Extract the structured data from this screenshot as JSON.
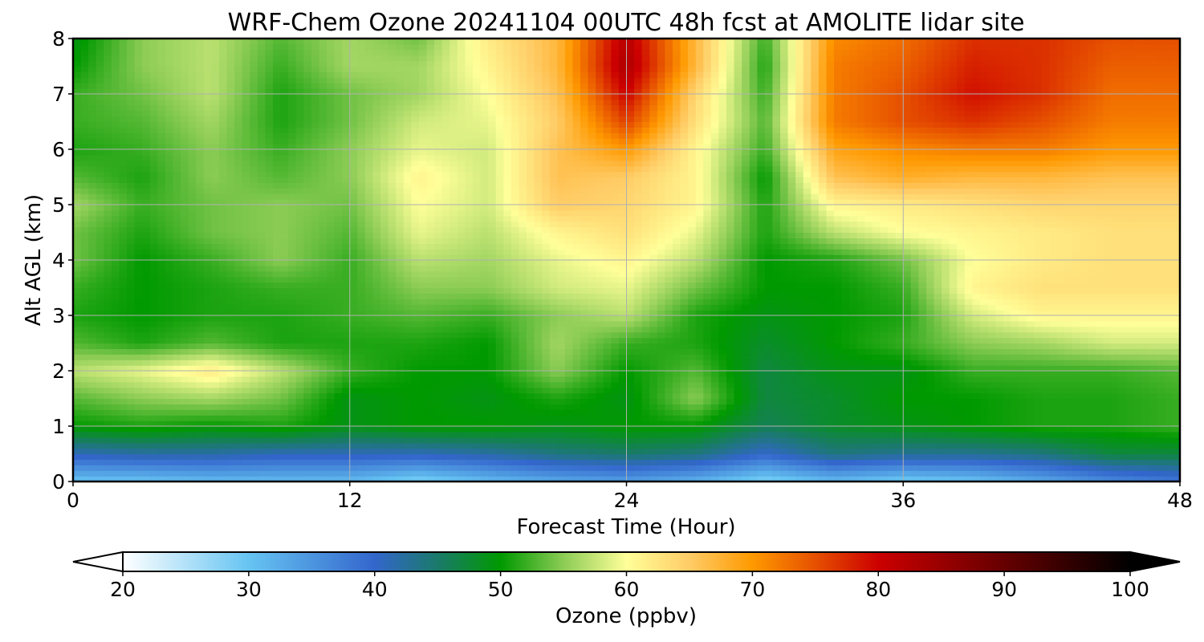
{
  "chart_data": {
    "type": "heatmap",
    "title": "WRF-Chem Ozone  20241104 00UTC 48h fcst at AMOLITE lidar site",
    "xlabel": "Forecast Time (Hour)",
    "ylabel": "Alt AGL (km)",
    "xlim": [
      0,
      48
    ],
    "ylim": [
      0,
      8
    ],
    "x_ticks": [
      "0",
      "12",
      "24",
      "36",
      "48"
    ],
    "y_ticks": [
      "0",
      "1",
      "2",
      "3",
      "4",
      "5",
      "6",
      "7",
      "8"
    ],
    "grid": true,
    "x": [
      0,
      3,
      6,
      9,
      12,
      15,
      18,
      21,
      24,
      27,
      30,
      33,
      36,
      39,
      42,
      45,
      48
    ],
    "y": [
      0,
      0.5,
      1,
      1.5,
      2,
      2.5,
      3,
      3.5,
      4,
      4.5,
      5,
      5.5,
      6,
      6.5,
      7,
      7.5,
      8
    ],
    "z": [
      [
        30,
        30,
        31,
        31,
        31,
        28,
        31,
        33,
        34,
        32,
        28,
        31,
        29,
        30,
        33,
        36,
        38
      ],
      [
        41,
        42,
        42,
        41,
        41,
        41,
        42,
        44,
        45,
        44,
        40,
        44,
        43,
        43,
        44,
        47,
        47
      ],
      [
        50,
        51,
        50,
        51,
        49,
        50,
        50,
        49,
        50,
        50,
        46,
        48,
        49,
        50,
        51,
        51,
        52
      ],
      [
        53,
        55,
        56,
        54,
        49,
        50,
        49,
        51,
        49,
        55,
        47,
        48,
        50,
        50,
        51,
        51,
        52
      ],
      [
        57,
        59,
        62,
        57,
        52,
        50,
        50,
        55,
        50,
        53,
        47,
        49,
        49,
        52,
        52,
        52,
        53
      ],
      [
        53,
        51,
        53,
        51,
        51,
        51,
        50,
        56,
        52,
        51,
        48,
        50,
        52,
        55,
        56,
        58,
        58
      ],
      [
        51,
        50,
        51,
        51,
        52,
        53,
        52,
        55,
        57,
        51,
        49,
        50,
        51,
        58,
        61,
        61,
        61
      ],
      [
        52,
        50,
        51,
        52,
        52,
        55,
        55,
        58,
        59,
        54,
        50,
        50,
        52,
        61,
        63,
        63,
        63
      ],
      [
        54,
        50,
        52,
        55,
        52,
        57,
        56,
        59,
        61,
        57,
        50,
        51,
        54,
        60,
        62,
        63,
        63
      ],
      [
        54,
        51,
        54,
        55,
        53,
        59,
        57,
        61,
        63,
        59,
        51,
        57,
        60,
        61,
        62,
        63,
        63
      ],
      [
        56,
        52,
        54,
        55,
        54,
        60,
        58,
        65,
        64,
        61,
        51,
        61,
        62,
        63,
        64,
        64,
        64
      ],
      [
        53,
        51,
        55,
        53,
        55,
        61,
        58,
        66,
        65,
        61,
        50,
        66,
        68,
        67,
        67,
        66,
        66
      ],
      [
        51,
        52,
        55,
        52,
        55,
        59,
        58,
        66,
        70,
        61,
        52,
        69,
        71,
        72,
        72,
        70,
        70
      ],
      [
        52,
        53,
        56,
        51,
        54,
        58,
        59,
        65,
        76,
        63,
        53,
        72,
        75,
        77,
        75,
        72,
        72
      ],
      [
        52,
        54,
        57,
        51,
        54,
        56,
        60,
        66,
        80,
        64,
        52,
        72,
        75,
        79,
        77,
        73,
        73
      ],
      [
        50,
        55,
        57,
        52,
        56,
        56,
        61,
        67,
        83,
        67,
        51,
        72,
        74,
        78,
        77,
        74,
        74
      ],
      [
        49,
        55,
        57,
        53,
        56,
        54,
        62,
        67,
        82,
        67,
        52,
        71,
        73,
        77,
        77,
        75,
        75
      ]
    ],
    "colorbar": {
      "label": "Ozone  (ppbv)",
      "min": 20,
      "max": 100,
      "ticks": [
        "20",
        "30",
        "40",
        "50",
        "60",
        "70",
        "80",
        "90",
        "100"
      ],
      "extend": "both",
      "stops": [
        {
          "v": 20,
          "c": "#ffffff"
        },
        {
          "v": 30,
          "c": "#66c4f2"
        },
        {
          "v": 40,
          "c": "#3366cc"
        },
        {
          "v": 45,
          "c": "#1a7a6a"
        },
        {
          "v": 50,
          "c": "#009900"
        },
        {
          "v": 55,
          "c": "#8ccc55"
        },
        {
          "v": 60,
          "c": "#ffff99"
        },
        {
          "v": 65,
          "c": "#ffcc66"
        },
        {
          "v": 70,
          "c": "#ff9900"
        },
        {
          "v": 75,
          "c": "#e65000"
        },
        {
          "v": 80,
          "c": "#cc0000"
        },
        {
          "v": 90,
          "c": "#660000"
        },
        {
          "v": 100,
          "c": "#000000"
        }
      ]
    }
  }
}
